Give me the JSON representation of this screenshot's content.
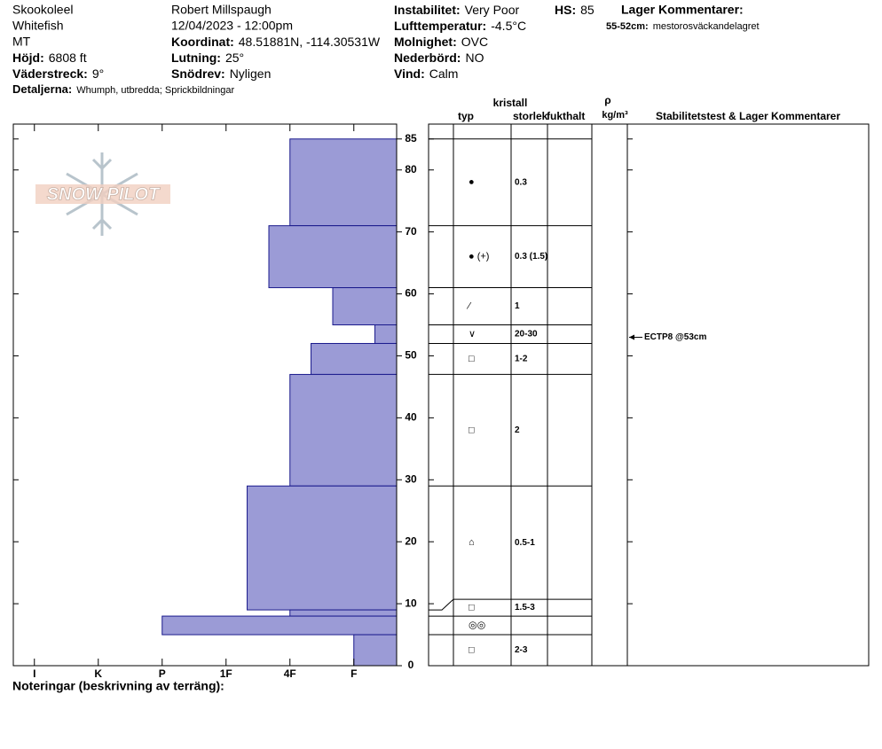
{
  "header": {
    "col1": [
      "Skookoleel",
      "Whitefish",
      "MT",
      {
        "label": "Höjd:",
        "value": "6808 ft"
      },
      {
        "label": "Väderstreck:",
        "value": "9°"
      }
    ],
    "col2": [
      "Robert Millspaugh",
      "12/04/2023 - 12:00pm",
      {
        "label": "Koordinat:",
        "value": "48.51881N, -114.30531W"
      },
      {
        "label": "Lutning:",
        "value": "25°"
      },
      {
        "label": "Snödrev:",
        "value": "Nyligen"
      }
    ],
    "col3": [
      {
        "label": "Instabilitet:",
        "value": "Very Poor"
      },
      {
        "label": "Lufttemperatur:",
        "value": "-4.5°C"
      },
      {
        "label": "Molnighet:",
        "value": "OVC"
      },
      {
        "label": "Nederbörd:",
        "value": "NO"
      },
      {
        "label": "Vind:",
        "value": "Calm"
      }
    ],
    "details": {
      "label": "Detaljerna:",
      "value": "Whumph, utbredda; Sprickbildningar"
    },
    "hs": {
      "label": "HS:",
      "value": "85"
    },
    "layer_comments": {
      "title": "Lager Kommentarer:",
      "items": [
        {
          "label": "55-52cm:",
          "value": "mestorosväckandelagret"
        }
      ]
    }
  },
  "logo": "SNOW PILOT",
  "hardness_axis": {
    "lim": [
      0.33,
      6.33
    ],
    "ticks": [
      {
        "value": 6,
        "label": "I"
      },
      {
        "value": 5,
        "label": "K"
      },
      {
        "value": 4,
        "label": "P"
      },
      {
        "value": 3,
        "label": "1F"
      },
      {
        "value": 2,
        "label": "4F"
      },
      {
        "value": 1,
        "label": "F"
      }
    ]
  },
  "height_axis": {
    "lim": [
      0,
      87.4
    ],
    "ticks": [
      0,
      10,
      20,
      30,
      40,
      50,
      60,
      70,
      80,
      85
    ]
  },
  "layers": [
    {
      "top": 85,
      "bottom": 71,
      "hardness": 2,
      "grain": "●",
      "size": "0.3"
    },
    {
      "top": 71,
      "bottom": 61,
      "hardness": 2.33,
      "grain": "● (+)",
      "size": "0.3 (1.5)"
    },
    {
      "top": 61,
      "bottom": 55,
      "hardness": 1.33,
      "grain": "⁄",
      "size": "1"
    },
    {
      "top": 55,
      "bottom": 52,
      "hardness": 0.67,
      "grain": "∨",
      "size": "20-30"
    },
    {
      "top": 52,
      "bottom": 47,
      "hardness": 1.67,
      "grain": "□",
      "size": "1-2"
    },
    {
      "top": 47,
      "bottom": 29,
      "hardness": 2,
      "grain": "□",
      "size": "2"
    },
    {
      "top": 29,
      "bottom": 9,
      "hardness": 2.67,
      "grain": "⌂",
      "size": "0.5-1"
    },
    {
      "top": 9,
      "bottom": 8,
      "hardness": 2,
      "grain": "□",
      "size": "1.5-3"
    },
    {
      "top": 8,
      "bottom": 5,
      "hardness": 4,
      "grain": "◎◎",
      "size": null
    },
    {
      "top": 5,
      "bottom": 0,
      "hardness": 1,
      "grain": "□",
      "size": "2-3"
    }
  ],
  "table_headers": {
    "crystal": "kristall",
    "type": "typ",
    "size": "storlek",
    "moisture": "fukthalt",
    "rho": "ρ",
    "density_unit": "kg/m³",
    "tests": "Stabilitetstest & Lager Kommentarer"
  },
  "tests": [
    {
      "label": "ECTP8 @53cm",
      "height": 53
    }
  ],
  "footer": "Noteringar (beskrivning av terräng):"
}
